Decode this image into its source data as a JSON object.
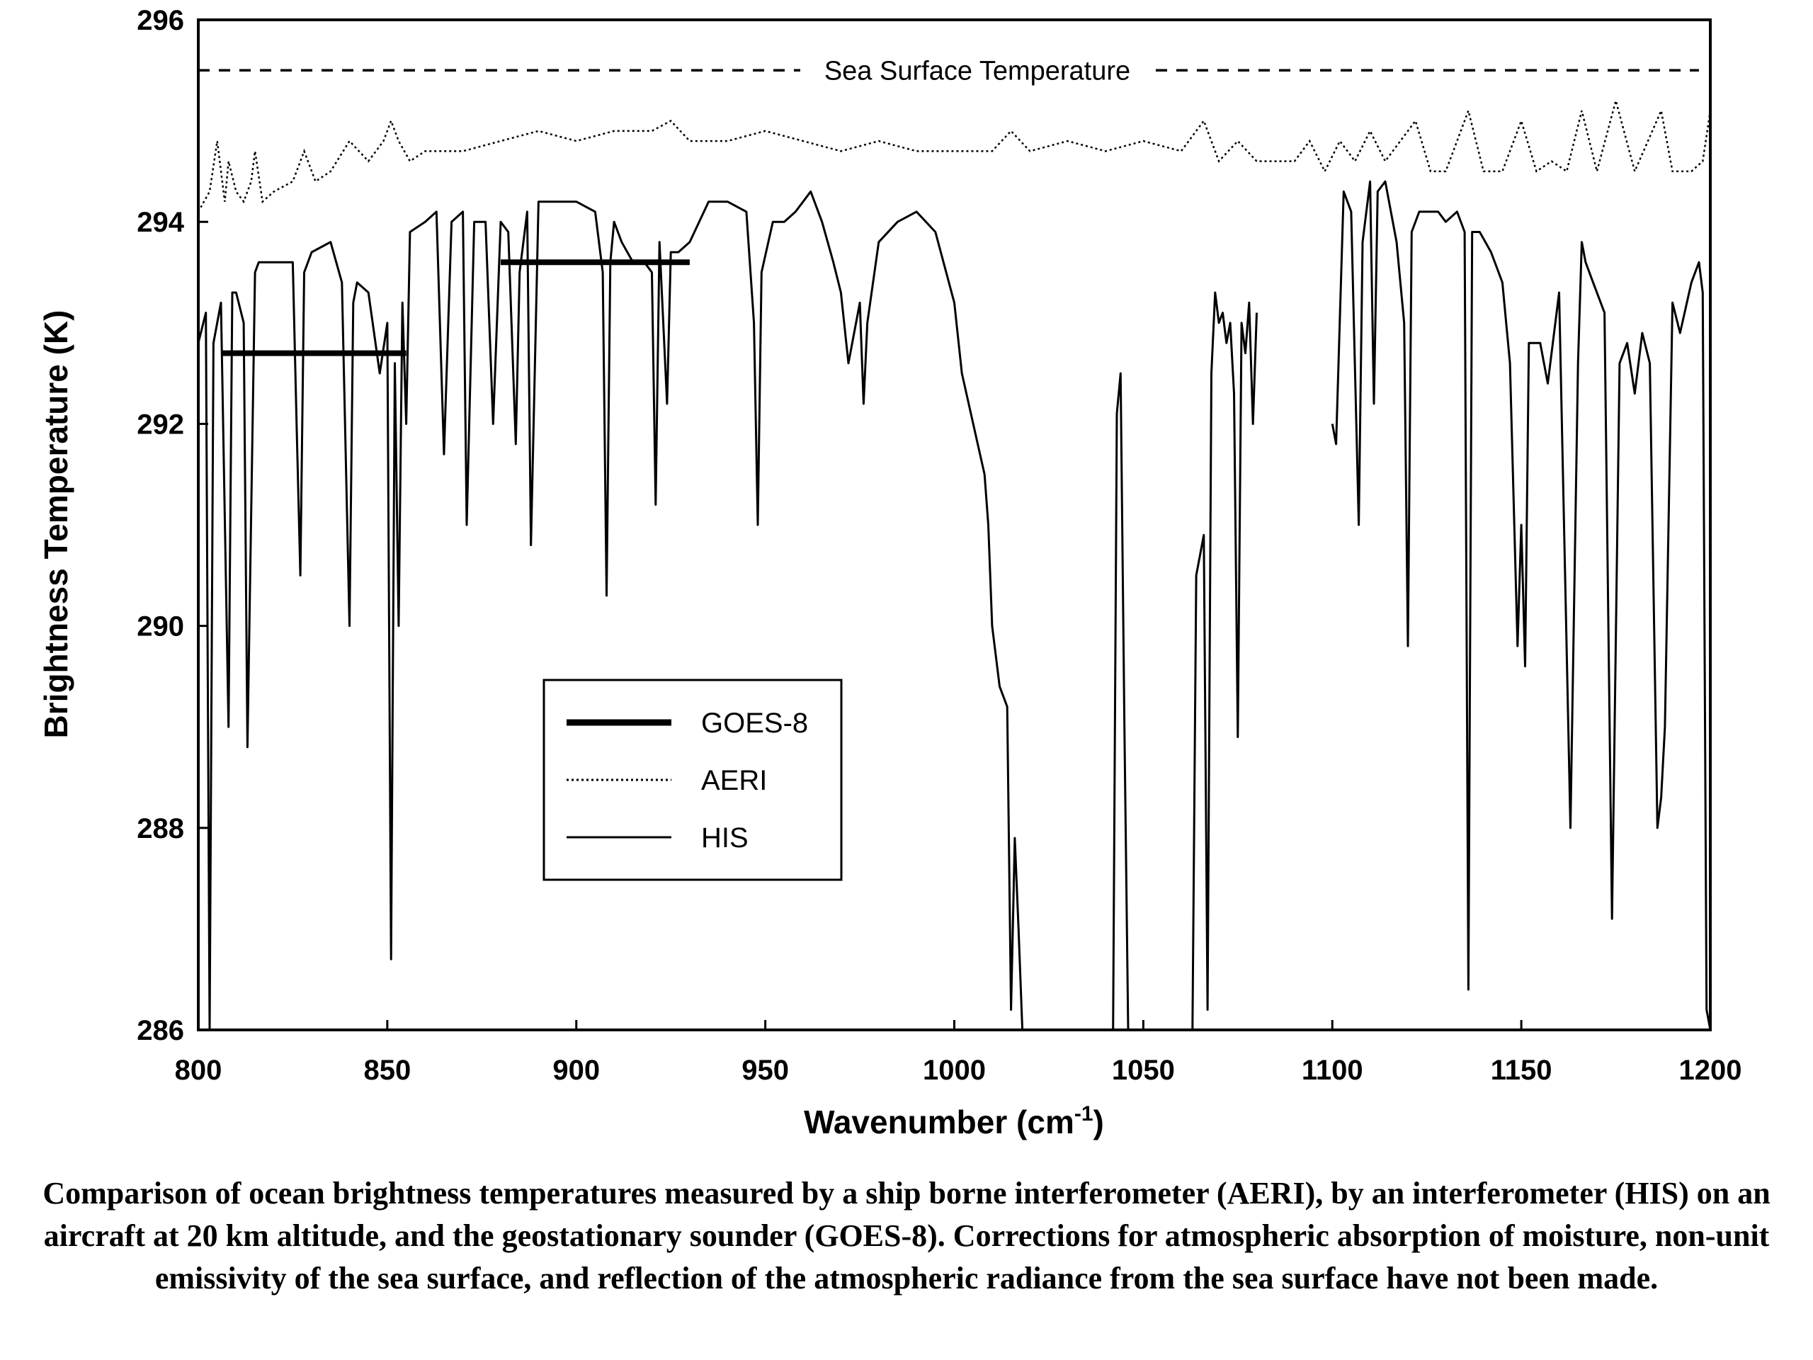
{
  "chart_data": {
    "type": "line",
    "title": "",
    "xlabel": "Wavenumber (cm",
    "xlabel_sup": "-1",
    "xlabel_close": ")",
    "ylabel": "Brightness Temperature (K)",
    "xlim": [
      800,
      1200
    ],
    "ylim": [
      286,
      296
    ],
    "x_ticks": [
      "800",
      "850",
      "900",
      "950",
      "1000",
      "1050",
      "1100",
      "1150",
      "1200"
    ],
    "y_ticks": [
      "286",
      "288",
      "290",
      "292",
      "294",
      "296"
    ],
    "legend_position": "center-left",
    "legend": [
      {
        "label": "GOES-8",
        "style": "thick"
      },
      {
        "label": "AERI",
        "style": "dotted"
      },
      {
        "label": "HIS",
        "style": "thin"
      }
    ],
    "annotations": [
      {
        "text": "Sea Surface Temperature",
        "y": 295.5,
        "style": "dashed"
      }
    ],
    "series": [
      {
        "name": "GOES-8",
        "segments": [
          {
            "x": [
              806,
              855
            ],
            "y": [
              292.7,
              292.7
            ]
          },
          {
            "x": [
              880,
              930
            ],
            "y": [
              293.6,
              293.6
            ]
          }
        ]
      },
      {
        "name": "AERI",
        "x": [
          800,
          803,
          805,
          807,
          808,
          810,
          812,
          814,
          815,
          817,
          820,
          825,
          828,
          831,
          835,
          840,
          845,
          849,
          851,
          853,
          856,
          860,
          870,
          880,
          890,
          900,
          910,
          920,
          925,
          930,
          940,
          950,
          960,
          970,
          980,
          990,
          1000,
          1010,
          1015,
          1020,
          1030,
          1040,
          1050,
          1060,
          1066,
          1070,
          1075,
          1080,
          1090,
          1094,
          1098,
          1102,
          1106,
          1110,
          1114,
          1118,
          1122,
          1126,
          1130,
          1136,
          1140,
          1145,
          1150,
          1154,
          1158,
          1162,
          1166,
          1170,
          1175,
          1180,
          1187,
          1190,
          1195,
          1198,
          1200
        ],
        "y": [
          294.1,
          294.3,
          294.8,
          294.2,
          294.6,
          294.3,
          294.2,
          294.4,
          294.7,
          294.2,
          294.3,
          294.4,
          294.7,
          294.4,
          294.5,
          294.8,
          294.6,
          294.8,
          295.0,
          294.8,
          294.6,
          294.7,
          294.7,
          294.8,
          294.9,
          294.8,
          294.9,
          294.9,
          295.0,
          294.8,
          294.8,
          294.9,
          294.8,
          294.7,
          294.8,
          294.7,
          294.7,
          294.7,
          294.9,
          294.7,
          294.8,
          294.7,
          294.8,
          294.7,
          295.0,
          294.6,
          294.8,
          294.6,
          294.6,
          294.8,
          294.5,
          294.8,
          294.6,
          294.9,
          294.6,
          294.8,
          295.0,
          294.5,
          294.5,
          295.1,
          294.5,
          294.5,
          295.0,
          294.5,
          294.6,
          294.5,
          295.1,
          294.5,
          295.2,
          294.5,
          295.1,
          294.5,
          294.5,
          294.6,
          295.1
        ]
      },
      {
        "name": "HIS",
        "segments": [
          {
            "x": [
              800,
              802,
              803,
              804,
              806,
              808,
              809,
              810,
              812,
              813,
              815,
              816,
              818,
              820,
              825,
              826,
              827,
              828,
              830,
              835,
              838,
              840,
              841,
              842,
              845,
              848,
              850,
              851,
              852,
              853,
              854,
              855,
              856,
              860,
              863,
              865,
              867,
              870,
              871,
              873,
              876,
              878,
              880,
              882,
              884,
              885,
              887,
              888,
              890,
              895,
              900,
              905,
              907,
              908,
              909,
              910,
              912,
              915,
              918,
              920,
              921,
              922,
              924,
              925,
              927,
              930,
              935,
              940,
              945,
              947,
              948,
              949,
              952,
              955,
              958,
              960,
              962,
              965,
              968,
              970,
              972,
              975,
              976,
              977,
              980,
              985,
              990,
              995,
              1000,
              1002,
              1005,
              1008,
              1009,
              1010,
              1012,
              1014,
              1015,
              1016,
              1017,
              1018
            ],
            "y": [
              292.8,
              293.1,
              286.0,
              292.8,
              293.2,
              289.0,
              293.3,
              293.3,
              293.0,
              288.8,
              293.5,
              293.6,
              293.6,
              293.6,
              293.6,
              292.0,
              290.5,
              293.5,
              293.7,
              293.8,
              293.4,
              290.0,
              293.2,
              293.4,
              293.3,
              292.5,
              293.0,
              286.7,
              292.6,
              290.0,
              293.2,
              292.0,
              293.9,
              294.0,
              294.1,
              291.7,
              294.0,
              294.1,
              291.0,
              294.0,
              294.0,
              292.0,
              294.0,
              293.9,
              291.8,
              293.5,
              294.1,
              290.8,
              294.2,
              294.2,
              294.2,
              294.1,
              293.5,
              290.3,
              293.6,
              294.0,
              293.8,
              293.6,
              293.6,
              293.5,
              291.2,
              293.8,
              292.2,
              293.7,
              293.7,
              293.8,
              294.2,
              294.2,
              294.1,
              293.0,
              291.0,
              293.5,
              294.0,
              294.0,
              294.1,
              294.2,
              294.3,
              294.0,
              293.6,
              293.3,
              292.6,
              293.2,
              292.2,
              293.0,
              293.8,
              294.0,
              294.1,
              293.9,
              293.2,
              292.5,
              292.0,
              291.5,
              291.0,
              290.0,
              289.4,
              289.2,
              286.2,
              287.9,
              287.0,
              286.0
            ]
          },
          {
            "x": [
              1042,
              1043,
              1044,
              1045,
              1046
            ],
            "y": [
              286.0,
              292.1,
              292.5,
              289.0,
              286.0
            ]
          },
          {
            "x": [
              1063,
              1064,
              1066,
              1067,
              1068,
              1069,
              1070,
              1071,
              1072,
              1073,
              1074,
              1075,
              1076,
              1077,
              1078,
              1079,
              1080
            ],
            "y": [
              286.0,
              290.5,
              290.9,
              286.2,
              292.5,
              293.3,
              293.0,
              293.1,
              292.8,
              293.0,
              292.3,
              288.9,
              293.0,
              292.7,
              293.2,
              292.0,
              293.1
            ]
          },
          {
            "x": [
              1100,
              1101,
              1103,
              1105,
              1107,
              1108,
              1110,
              1111,
              1112,
              1114,
              1117,
              1119,
              1120,
              1121,
              1123,
              1125,
              1128,
              1130,
              1133,
              1135,
              1136,
              1137,
              1139,
              1142,
              1145,
              1147,
              1149,
              1150,
              1151,
              1152,
              1153,
              1155,
              1157,
              1160,
              1163,
              1165,
              1166,
              1167,
              1169,
              1172,
              1174,
              1176,
              1178,
              1180,
              1182,
              1184,
              1186,
              1187,
              1188,
              1190,
              1192,
              1195,
              1197,
              1198,
              1199,
              1200
            ],
            "y": [
              292.0,
              291.8,
              294.3,
              294.1,
              291.0,
              293.8,
              294.4,
              292.2,
              294.3,
              294.4,
              293.8,
              293.0,
              289.8,
              293.9,
              294.1,
              294.1,
              294.1,
              294.0,
              294.1,
              293.9,
              286.4,
              293.9,
              293.9,
              293.7,
              293.4,
              292.6,
              289.8,
              291.0,
              289.6,
              292.8,
              292.8,
              292.8,
              292.4,
              293.3,
              288.0,
              292.6,
              293.8,
              293.6,
              293.4,
              293.1,
              287.1,
              292.6,
              292.8,
              292.3,
              292.9,
              292.6,
              288.0,
              288.3,
              289.0,
              293.2,
              292.9,
              293.4,
              293.6,
              293.3,
              286.2,
              286.0
            ]
          }
        ]
      }
    ]
  },
  "caption": "Comparison of ocean brightness temperatures measured by a ship borne interferometer (AERI), by an interferometer (HIS) on an aircraft at 20 km altitude, and the geostationary sounder (GOES-8).  Corrections for atmospheric absorption of moisture, non-unit emissivity of the sea surface, and reflection of the atmospheric radiance from the sea surface have not been made."
}
